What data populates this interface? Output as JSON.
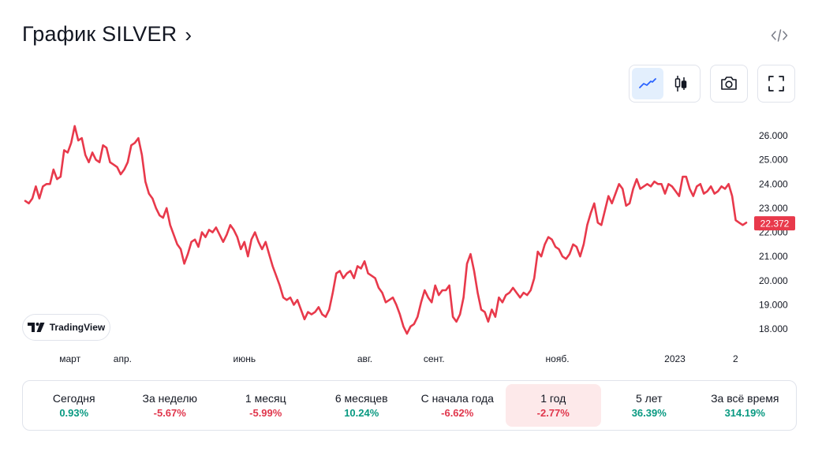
{
  "header": {
    "title": "График SILVER",
    "chevron": "›",
    "embed_icon": "code-icon"
  },
  "toolbar": {
    "line_button_icon": "line-chart-icon",
    "candles_button_icon": "candlestick-icon",
    "snapshot_button_icon": "camera-icon",
    "fullscreen_button_icon": "fullscreen-icon"
  },
  "branding": {
    "label": "TradingView"
  },
  "colors": {
    "line": "#e8394b",
    "positive": "#089981",
    "negative": "#e0364c",
    "active_period_bg": "#fde9ea"
  },
  "chart_data": {
    "type": "line",
    "price_tag": "22.372",
    "y_ticks": [
      "26.000",
      "25.000",
      "24.000",
      "23.000",
      "22.000",
      "21.000",
      "20.000",
      "19.000",
      "18.000"
    ],
    "ylim": [
      17.5,
      26.5
    ],
    "x_ticks": [
      {
        "label": "март",
        "x": 0.062
      },
      {
        "label": "апр.",
        "x": 0.135
      },
      {
        "label": "июнь",
        "x": 0.304
      },
      {
        "label": "авг.",
        "x": 0.471
      },
      {
        "label": "сент.",
        "x": 0.567
      },
      {
        "label": "нояб.",
        "x": 0.738
      },
      {
        "label": "2023",
        "x": 0.901
      },
      {
        "label": "2",
        "x": 0.985
      }
    ],
    "series": [
      {
        "values": [
          23.3,
          23.2,
          23.4,
          23.9,
          23.4,
          23.9,
          24.0,
          24.0,
          24.6,
          24.2,
          24.3,
          25.4,
          25.3,
          25.7,
          26.4,
          25.8,
          25.9,
          25.2,
          24.9,
          25.3,
          25.0,
          24.9,
          25.6,
          25.5,
          24.9,
          24.8,
          24.7,
          24.4,
          24.6,
          24.9,
          25.6,
          25.7,
          25.9,
          25.2,
          24.1,
          23.6,
          23.4,
          23.0,
          22.7,
          22.6,
          23.0,
          22.3,
          21.9,
          21.5,
          21.3,
          20.7,
          21.1,
          21.6,
          21.7,
          21.4,
          22.0,
          21.8,
          22.1,
          22.0,
          22.2,
          21.9,
          21.6,
          21.9,
          22.3,
          22.1,
          21.8,
          21.3,
          21.6,
          21.0,
          21.7,
          22.0,
          21.6,
          21.3,
          21.6,
          21.1,
          20.6,
          20.2,
          19.8,
          19.3,
          19.2,
          19.3,
          19.0,
          19.2,
          18.8,
          18.4,
          18.7,
          18.6,
          18.7,
          18.9,
          18.6,
          18.5,
          18.8,
          19.5,
          20.3,
          20.4,
          20.1,
          20.3,
          20.4,
          20.1,
          20.6,
          20.5,
          20.8,
          20.3,
          20.2,
          20.1,
          19.7,
          19.5,
          19.1,
          19.2,
          19.3,
          19.0,
          18.6,
          18.1,
          17.8,
          18.1,
          18.2,
          18.5,
          19.1,
          19.6,
          19.3,
          19.1,
          19.8,
          19.4,
          19.6,
          19.6,
          19.8,
          18.5,
          18.3,
          18.6,
          19.3,
          20.7,
          21.1,
          20.4,
          19.5,
          18.8,
          18.7,
          18.3,
          18.8,
          18.5,
          19.3,
          19.1,
          19.4,
          19.5,
          19.7,
          19.5,
          19.3,
          19.5,
          19.4,
          19.6,
          20.1,
          21.2,
          21.0,
          21.5,
          21.8,
          21.7,
          21.4,
          21.3,
          21.0,
          20.9,
          21.1,
          21.5,
          21.4,
          21.0,
          21.5,
          22.3,
          22.8,
          23.2,
          22.4,
          22.3,
          22.9,
          23.5,
          23.2,
          23.6,
          24.0,
          23.8,
          23.1,
          23.2,
          23.8,
          24.2,
          23.8,
          23.9,
          24.0,
          23.9,
          24.1,
          24.0,
          24.0,
          23.6,
          24.0,
          23.9,
          23.7,
          23.5,
          24.3,
          24.3,
          23.8,
          23.5,
          23.9,
          24.0,
          23.6,
          23.7,
          23.9,
          23.6,
          23.7,
          23.9,
          23.8,
          24.0,
          23.5,
          22.5,
          22.4,
          22.3,
          22.4
        ]
      }
    ]
  },
  "stats": [
    {
      "label": "Сегодня",
      "value": "0.93%",
      "trend": "pos",
      "active": false
    },
    {
      "label": "За неделю",
      "value": "-5.67%",
      "trend": "neg",
      "active": false
    },
    {
      "label": "1 месяц",
      "value": "-5.99%",
      "trend": "neg",
      "active": false
    },
    {
      "label": "6 месяцев",
      "value": "10.24%",
      "trend": "pos",
      "active": false
    },
    {
      "label": "С начала года",
      "value": "-6.62%",
      "trend": "neg",
      "active": false
    },
    {
      "label": "1 год",
      "value": "-2.77%",
      "trend": "neg",
      "active": true
    },
    {
      "label": "5 лет",
      "value": "36.39%",
      "trend": "pos",
      "active": false
    },
    {
      "label": "За всё время",
      "value": "314.19%",
      "trend": "pos",
      "active": false
    }
  ]
}
